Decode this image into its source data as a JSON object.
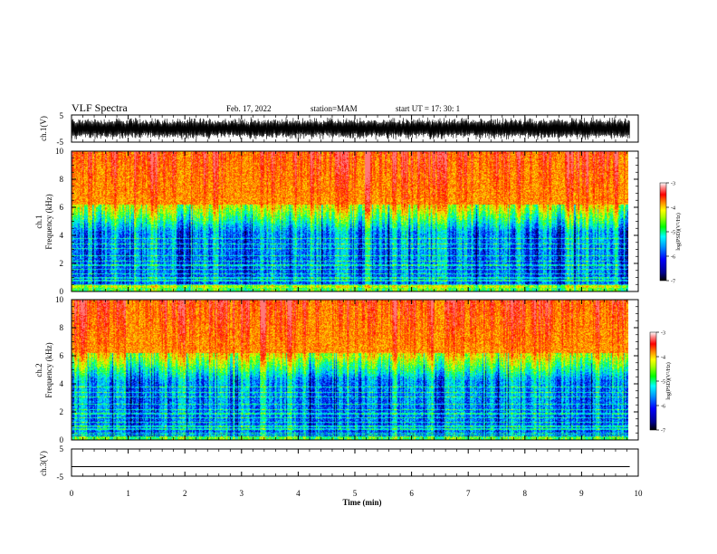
{
  "header": {
    "title": "VLF Spectra",
    "date": "Feb. 17, 2022",
    "station": "station=MAM",
    "start": "start  UT =   17: 30: 1"
  },
  "colors": {
    "colormap": [
      "#000066",
      "#0000ff",
      "#0066ff",
      "#00ccff",
      "#00ffcc",
      "#00ff00",
      "#88ff00",
      "#ffff00",
      "#ffaa00",
      "#ff5500",
      "#ff0000",
      "#ff9999",
      "#ffffff"
    ],
    "waveform": "#000000",
    "axis": "#000000"
  },
  "chart_data": [
    {
      "type": "line",
      "panel": "waveform-ch1",
      "ylabel": "ch.1(V)",
      "yticks": [
        "5",
        "-5"
      ],
      "ylim": [
        -5,
        5
      ],
      "xlim": [
        0,
        10
      ],
      "description_values": "dense oscillating signal, amplitude roughly ±3.5 V"
    },
    {
      "type": "heatmap",
      "panel": "spectrogram-ch1",
      "ylabel_line1": "ch.1",
      "ylabel_line2": "Frequency (kHz)",
      "ylim": [
        0,
        10
      ],
      "yticks": [
        "0",
        "2",
        "4",
        "6",
        "8",
        "10"
      ],
      "xlim": [
        0,
        9.85
      ],
      "colorbar": {
        "label": "log(PSD)(V²/Hz)",
        "range": [
          -7,
          -3
        ],
        "ticks": [
          "-3",
          "-4",
          "-5",
          "-6",
          "-7"
        ]
      }
    },
    {
      "type": "heatmap",
      "panel": "spectrogram-ch2",
      "ylabel_line1": "ch.2",
      "ylabel_line2": "Frequency (kHz)",
      "ylim": [
        0,
        10
      ],
      "yticks": [
        "0",
        "2",
        "4",
        "6",
        "8",
        "10"
      ],
      "xlim": [
        0,
        9.85
      ],
      "colorbar": {
        "label": "log(PSD)(V²/Hz)",
        "range": [
          -7,
          -3
        ],
        "ticks": [
          "-3",
          "-4",
          "-5",
          "-6",
          "-7"
        ]
      }
    },
    {
      "type": "line",
      "panel": "waveform-ch3",
      "ylabel": "ch.3(V)",
      "yticks": [
        "5",
        "-5"
      ],
      "ylim": [
        -5,
        5
      ],
      "x": [
        0,
        9.85
      ],
      "y": [
        -1.5,
        -1.5
      ]
    }
  ],
  "xaxis": {
    "label": "Time (min)",
    "ticks": [
      "0",
      "1",
      "2",
      "3",
      "4",
      "5",
      "6",
      "7",
      "8",
      "9",
      "10"
    ],
    "range": [
      0,
      10
    ]
  }
}
